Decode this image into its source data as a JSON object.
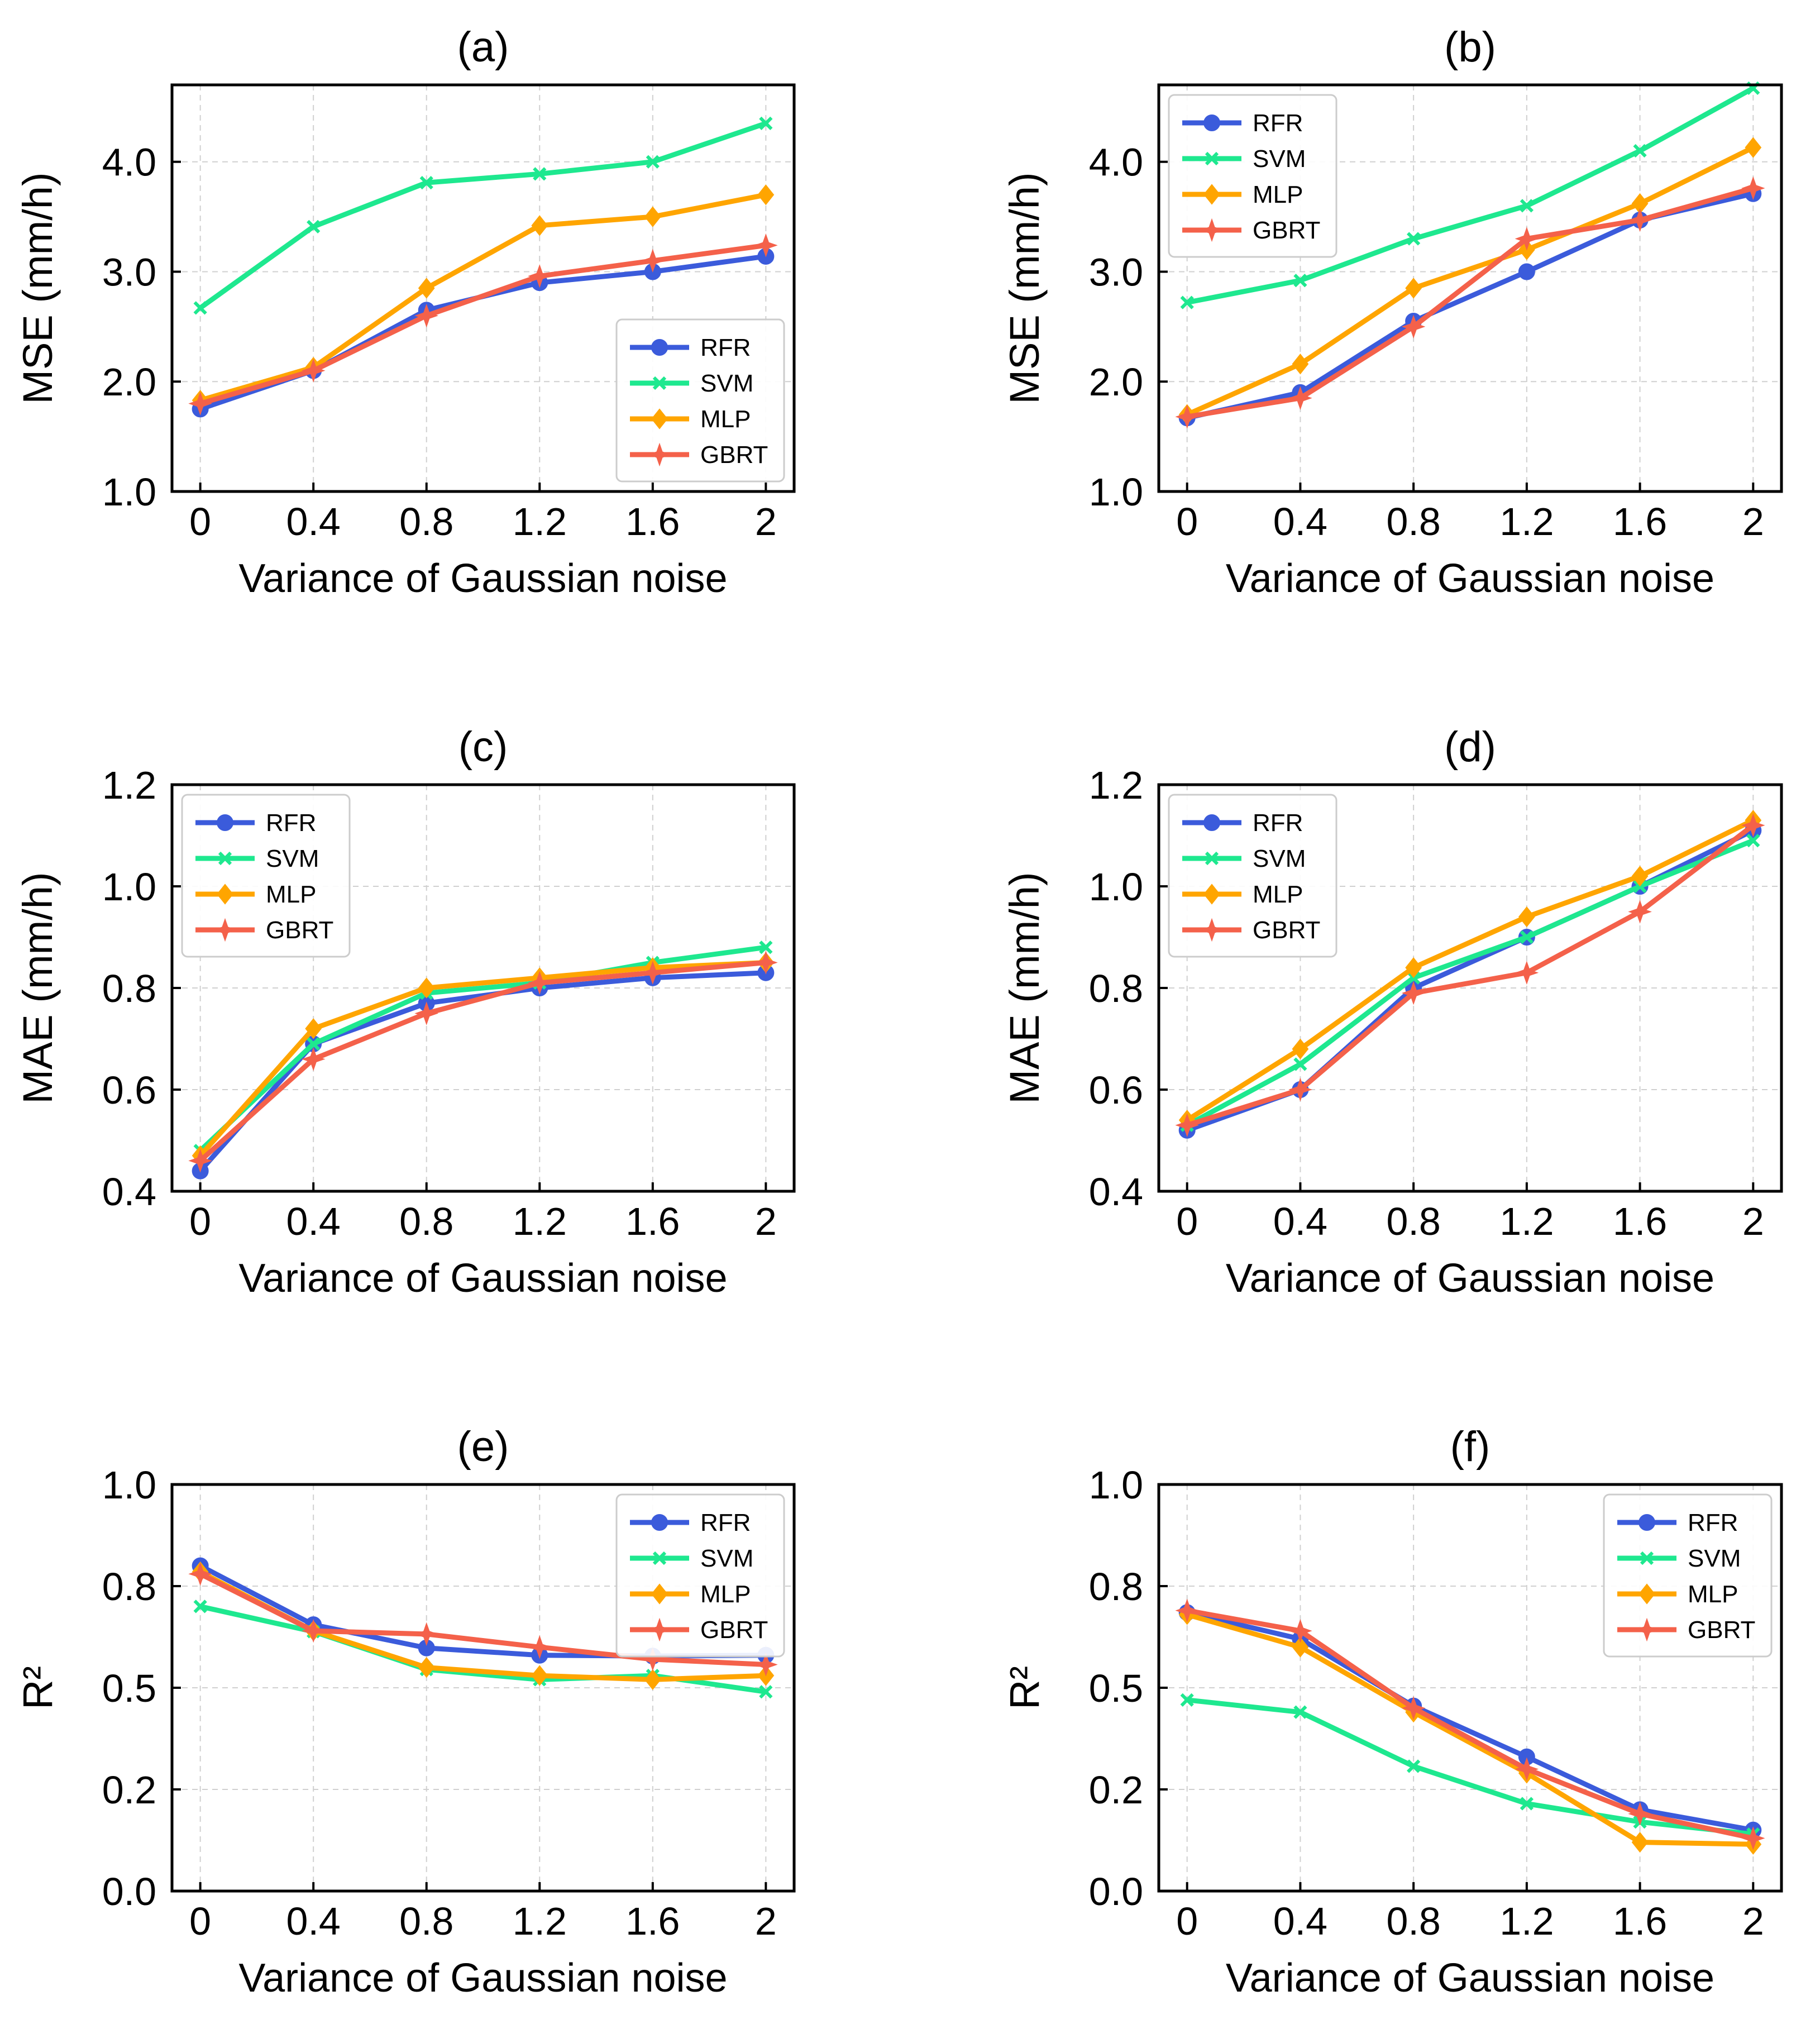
{
  "chart_data": [
    {
      "panel": "(a)",
      "type": "line",
      "title": "(a)",
      "xlabel": "Variance of Gaussian noise",
      "ylabel": "MSE (mm/h)",
      "x": [
        0,
        0.4,
        0.8,
        1.2,
        1.6,
        2
      ],
      "xtick_labels": [
        "0",
        "0.4",
        "0.8",
        "1.2",
        "1.6",
        "2"
      ],
      "xlim": [
        -0.1,
        2.1
      ],
      "ylim": [
        1.0,
        4.7
      ],
      "yticks": [
        1.0,
        2.0,
        3.0,
        4.0
      ],
      "ytick_labels": [
        "1.0",
        "2.0",
        "3.0",
        "4.0"
      ],
      "legend": "lower right",
      "grid": true,
      "series": [
        {
          "name": "RFR",
          "values": [
            1.75,
            2.1,
            2.65,
            2.9,
            3.0,
            3.14
          ]
        },
        {
          "name": "SVM",
          "values": [
            2.67,
            3.41,
            3.81,
            3.89,
            4.0,
            4.35
          ]
        },
        {
          "name": "MLP",
          "values": [
            1.83,
            2.13,
            2.85,
            3.42,
            3.5,
            3.7
          ]
        },
        {
          "name": "GBRT",
          "values": [
            1.8,
            2.1,
            2.6,
            2.96,
            3.1,
            3.24
          ]
        }
      ]
    },
    {
      "panel": "(b)",
      "type": "line",
      "title": "(b)",
      "xlabel": "Variance of Gaussian noise",
      "ylabel": "MSE (mm/h)",
      "x": [
        0,
        0.4,
        0.8,
        1.2,
        1.6,
        2
      ],
      "xtick_labels": [
        "0",
        "0.4",
        "0.8",
        "1.2",
        "1.6",
        "2"
      ],
      "xlim": [
        -0.1,
        2.1
      ],
      "ylim": [
        1.0,
        4.7
      ],
      "yticks": [
        1.0,
        2.0,
        3.0,
        4.0
      ],
      "ytick_labels": [
        "1.0",
        "2.0",
        "3.0",
        "4.0"
      ],
      "legend": "upper left",
      "grid": true,
      "series": [
        {
          "name": "RFR",
          "values": [
            1.67,
            1.9,
            2.55,
            3.0,
            3.47,
            3.71
          ]
        },
        {
          "name": "SVM",
          "values": [
            2.72,
            2.92,
            3.3,
            3.6,
            4.1,
            4.67
          ]
        },
        {
          "name": "MLP",
          "values": [
            1.7,
            2.16,
            2.85,
            3.2,
            3.62,
            4.13
          ]
        },
        {
          "name": "GBRT",
          "values": [
            1.68,
            1.85,
            2.5,
            3.3,
            3.47,
            3.76
          ]
        }
      ]
    },
    {
      "panel": "(c)",
      "type": "line",
      "title": "(c)",
      "xlabel": "Variance of Gaussian noise",
      "ylabel": "MAE (mm/h)",
      "x": [
        0,
        0.4,
        0.8,
        1.2,
        1.6,
        2
      ],
      "xtick_labels": [
        "0",
        "0.4",
        "0.8",
        "1.2",
        "1.6",
        "2"
      ],
      "xlim": [
        -0.1,
        2.1
      ],
      "ylim": [
        0.4,
        1.2
      ],
      "yticks": [
        0.4,
        0.6,
        0.8,
        1.0,
        1.2
      ],
      "ytick_labels": [
        "0.4",
        "0.6",
        "0.8",
        "1.0",
        "1.2"
      ],
      "legend": "upper left",
      "grid": true,
      "series": [
        {
          "name": "RFR",
          "values": [
            0.44,
            0.69,
            0.77,
            0.8,
            0.82,
            0.83
          ]
        },
        {
          "name": "SVM",
          "values": [
            0.48,
            0.69,
            0.79,
            0.81,
            0.85,
            0.88
          ]
        },
        {
          "name": "MLP",
          "values": [
            0.47,
            0.72,
            0.8,
            0.82,
            0.84,
            0.85
          ]
        },
        {
          "name": "GBRT",
          "values": [
            0.46,
            0.66,
            0.75,
            0.81,
            0.83,
            0.85
          ]
        }
      ]
    },
    {
      "panel": "(d)",
      "type": "line",
      "title": "(d)",
      "xlabel": "Variance of Gaussian noise",
      "ylabel": "MAE (mm/h)",
      "x": [
        0,
        0.4,
        0.8,
        1.2,
        1.6,
        2
      ],
      "xtick_labels": [
        "0",
        "0.4",
        "0.8",
        "1.2",
        "1.6",
        "2"
      ],
      "xlim": [
        -0.1,
        2.1
      ],
      "ylim": [
        0.4,
        1.2
      ],
      "yticks": [
        0.4,
        0.6,
        0.8,
        1.0,
        1.2
      ],
      "ytick_labels": [
        "0.4",
        "0.6",
        "0.8",
        "1.0",
        "1.2"
      ],
      "legend": "upper left",
      "grid": true,
      "series": [
        {
          "name": "RFR",
          "values": [
            0.52,
            0.6,
            0.8,
            0.9,
            1.0,
            1.11
          ]
        },
        {
          "name": "SVM",
          "values": [
            0.53,
            0.65,
            0.82,
            0.9,
            1.0,
            1.09
          ]
        },
        {
          "name": "MLP",
          "values": [
            0.54,
            0.68,
            0.84,
            0.94,
            1.02,
            1.13
          ]
        },
        {
          "name": "GBRT",
          "values": [
            0.53,
            0.6,
            0.79,
            0.83,
            0.95,
            1.12
          ]
        }
      ]
    },
    {
      "panel": "(e)",
      "type": "line",
      "title": "(e)",
      "xlabel": "Variance of Gaussian noise",
      "ylabel": "R²",
      "x": [
        0,
        0.4,
        0.8,
        1.2,
        1.6,
        2
      ],
      "xtick_labels": [
        "0",
        "0.4",
        "0.8",
        "1.2",
        "1.6",
        "2"
      ],
      "xlim": [
        -0.1,
        2.1
      ],
      "ylim": [
        0.0,
        1.0
      ],
      "yticks": [
        0.0,
        0.25,
        0.5,
        0.75,
        1.0
      ],
      "ytick_labels": [
        "0.0",
        "0.2",
        "0.5",
        "0.8",
        "1.0"
      ],
      "legend": "upper right",
      "grid": true,
      "series": [
        {
          "name": "RFR",
          "values": [
            0.8,
            0.655,
            0.598,
            0.58,
            0.578,
            0.58
          ]
        },
        {
          "name": "SVM",
          "values": [
            0.7,
            0.638,
            0.545,
            0.52,
            0.53,
            0.49
          ]
        },
        {
          "name": "MLP",
          "values": [
            0.785,
            0.64,
            0.55,
            0.53,
            0.52,
            0.53
          ]
        },
        {
          "name": "GBRT",
          "values": [
            0.78,
            0.64,
            0.632,
            0.6,
            0.57,
            0.557
          ]
        }
      ]
    },
    {
      "panel": "(f)",
      "type": "line",
      "title": "(f)",
      "xlabel": "Variance of Gaussian noise",
      "ylabel": "R²",
      "x": [
        0,
        0.4,
        0.8,
        1.2,
        1.6,
        2
      ],
      "xtick_labels": [
        "0",
        "0.4",
        "0.8",
        "1.2",
        "1.6",
        "2"
      ],
      "xlim": [
        -0.1,
        2.1
      ],
      "ylim": [
        0.0,
        1.0
      ],
      "yticks": [
        0.0,
        0.25,
        0.5,
        0.75,
        1.0
      ],
      "ytick_labels": [
        "0.0",
        "0.2",
        "0.5",
        "0.8",
        "1.0"
      ],
      "legend": "upper right",
      "grid": true,
      "series": [
        {
          "name": "RFR",
          "values": [
            0.685,
            0.62,
            0.455,
            0.33,
            0.2,
            0.15
          ]
        },
        {
          "name": "SVM",
          "values": [
            0.47,
            0.44,
            0.307,
            0.215,
            0.17,
            0.14
          ]
        },
        {
          "name": "MLP",
          "values": [
            0.68,
            0.6,
            0.44,
            0.29,
            0.12,
            0.115
          ]
        },
        {
          "name": "GBRT",
          "values": [
            0.69,
            0.64,
            0.45,
            0.3,
            0.19,
            0.13
          ]
        }
      ]
    }
  ],
  "series_style": {
    "RFR": {
      "color": "#3b5bdb",
      "marker": "circle"
    },
    "SVM": {
      "color": "#1ee88f",
      "marker": "x"
    },
    "MLP": {
      "color": "#ffa500",
      "marker": "diamond"
    },
    "GBRT": {
      "color": "#f4614a",
      "marker": "star"
    }
  },
  "colors": {
    "axis": "#000000",
    "grid": "#d0d0d0",
    "legend_border": "#cccccc"
  }
}
